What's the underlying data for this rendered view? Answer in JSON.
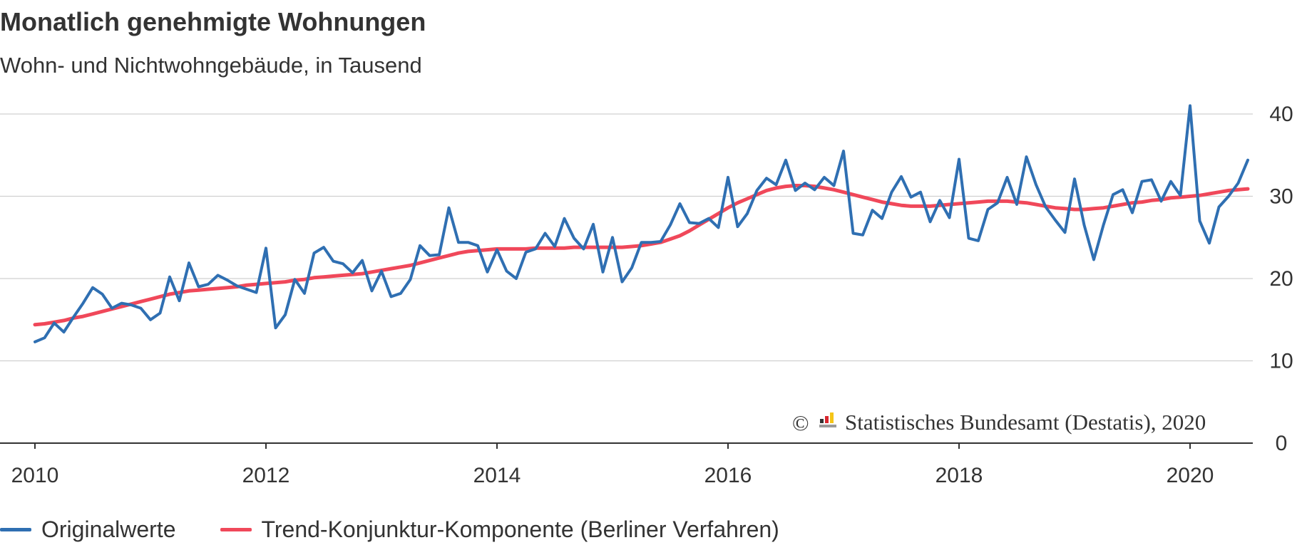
{
  "chart_data": {
    "type": "line",
    "title": "Monatlich genehmigte Wohnungen",
    "subtitle": "Wohn- und Nichtwohngebäude, in Tausend",
    "copyright": "© Statistisches Bundesamt (Destatis), 2020",
    "x_start": "2010-01",
    "xticks": [
      "2010",
      "2012",
      "2014",
      "2016",
      "2018",
      "2020"
    ],
    "yticks": [
      "0",
      "10",
      "20",
      "30",
      "40"
    ],
    "ylim": [
      0,
      40
    ],
    "grid": true,
    "legend_position": "bottom-left",
    "series": [
      {
        "name": "Originalwerte",
        "color": "#2f6fb2",
        "values": [
          12.3,
          12.8,
          14.6,
          13.5,
          15.3,
          17.0,
          18.9,
          18.1,
          16.4,
          17.0,
          16.8,
          16.4,
          15.0,
          15.8,
          20.2,
          17.3,
          21.9,
          19.0,
          19.3,
          20.4,
          19.8,
          19.1,
          18.7,
          18.3,
          23.7,
          14.0,
          15.6,
          19.9,
          18.2,
          23.1,
          23.8,
          22.1,
          21.8,
          20.7,
          22.2,
          18.5,
          20.9,
          17.8,
          18.2,
          19.9,
          24.0,
          22.8,
          22.9,
          28.6,
          24.4,
          24.4,
          24.0,
          20.8,
          23.5,
          20.9,
          20.0,
          23.2,
          23.6,
          25.5,
          23.9,
          27.3,
          24.9,
          23.6,
          26.6,
          20.8,
          25.0,
          19.6,
          21.3,
          24.4,
          24.4,
          24.5,
          26.5,
          29.1,
          26.8,
          26.7,
          27.3,
          26.2,
          32.3,
          26.3,
          27.9,
          30.7,
          32.2,
          31.4,
          34.4,
          30.7,
          31.6,
          30.8,
          32.3,
          31.3,
          35.5,
          25.5,
          25.3,
          28.3,
          27.3,
          30.5,
          32.4,
          29.9,
          30.5,
          26.9,
          29.5,
          27.4,
          34.5,
          24.9,
          24.6,
          28.4,
          29.2,
          32.3,
          29.0,
          34.8,
          31.4,
          28.7,
          27.1,
          25.6,
          32.1,
          26.5,
          22.3,
          26.5,
          30.2,
          30.8,
          28.0,
          31.8,
          32.0,
          29.4,
          31.8,
          30.1,
          41.0,
          27.0,
          24.3,
          28.7,
          30.0,
          31.6,
          34.4
        ]
      },
      {
        "name": "Trend-Konjunktur-Komponente (Berliner Verfahren)",
        "color": "#f0485a",
        "values": [
          14.4,
          14.5,
          14.7,
          14.9,
          15.2,
          15.4,
          15.7,
          16.0,
          16.3,
          16.6,
          16.9,
          17.2,
          17.5,
          17.8,
          18.1,
          18.3,
          18.5,
          18.6,
          18.7,
          18.8,
          18.9,
          19.0,
          19.2,
          19.3,
          19.4,
          19.5,
          19.6,
          19.8,
          19.9,
          20.1,
          20.2,
          20.3,
          20.4,
          20.5,
          20.6,
          20.8,
          21.0,
          21.2,
          21.4,
          21.6,
          21.9,
          22.2,
          22.5,
          22.8,
          23.1,
          23.3,
          23.4,
          23.5,
          23.6,
          23.6,
          23.6,
          23.6,
          23.7,
          23.7,
          23.7,
          23.7,
          23.8,
          23.8,
          23.8,
          23.8,
          23.8,
          23.8,
          23.9,
          24.0,
          24.2,
          24.4,
          24.8,
          25.2,
          25.8,
          26.5,
          27.2,
          27.9,
          28.6,
          29.2,
          29.7,
          30.2,
          30.7,
          31.0,
          31.2,
          31.3,
          31.3,
          31.2,
          31.0,
          30.8,
          30.5,
          30.2,
          29.9,
          29.6,
          29.3,
          29.1,
          28.9,
          28.8,
          28.8,
          28.8,
          28.9,
          29.0,
          29.1,
          29.2,
          29.3,
          29.4,
          29.4,
          29.4,
          29.3,
          29.2,
          29.0,
          28.8,
          28.6,
          28.5,
          28.4,
          28.4,
          28.5,
          28.6,
          28.8,
          29.0,
          29.2,
          29.3,
          29.5,
          29.6,
          29.8,
          29.9,
          30.0,
          30.1,
          30.3,
          30.5,
          30.7,
          30.8,
          30.9
        ]
      }
    ]
  }
}
